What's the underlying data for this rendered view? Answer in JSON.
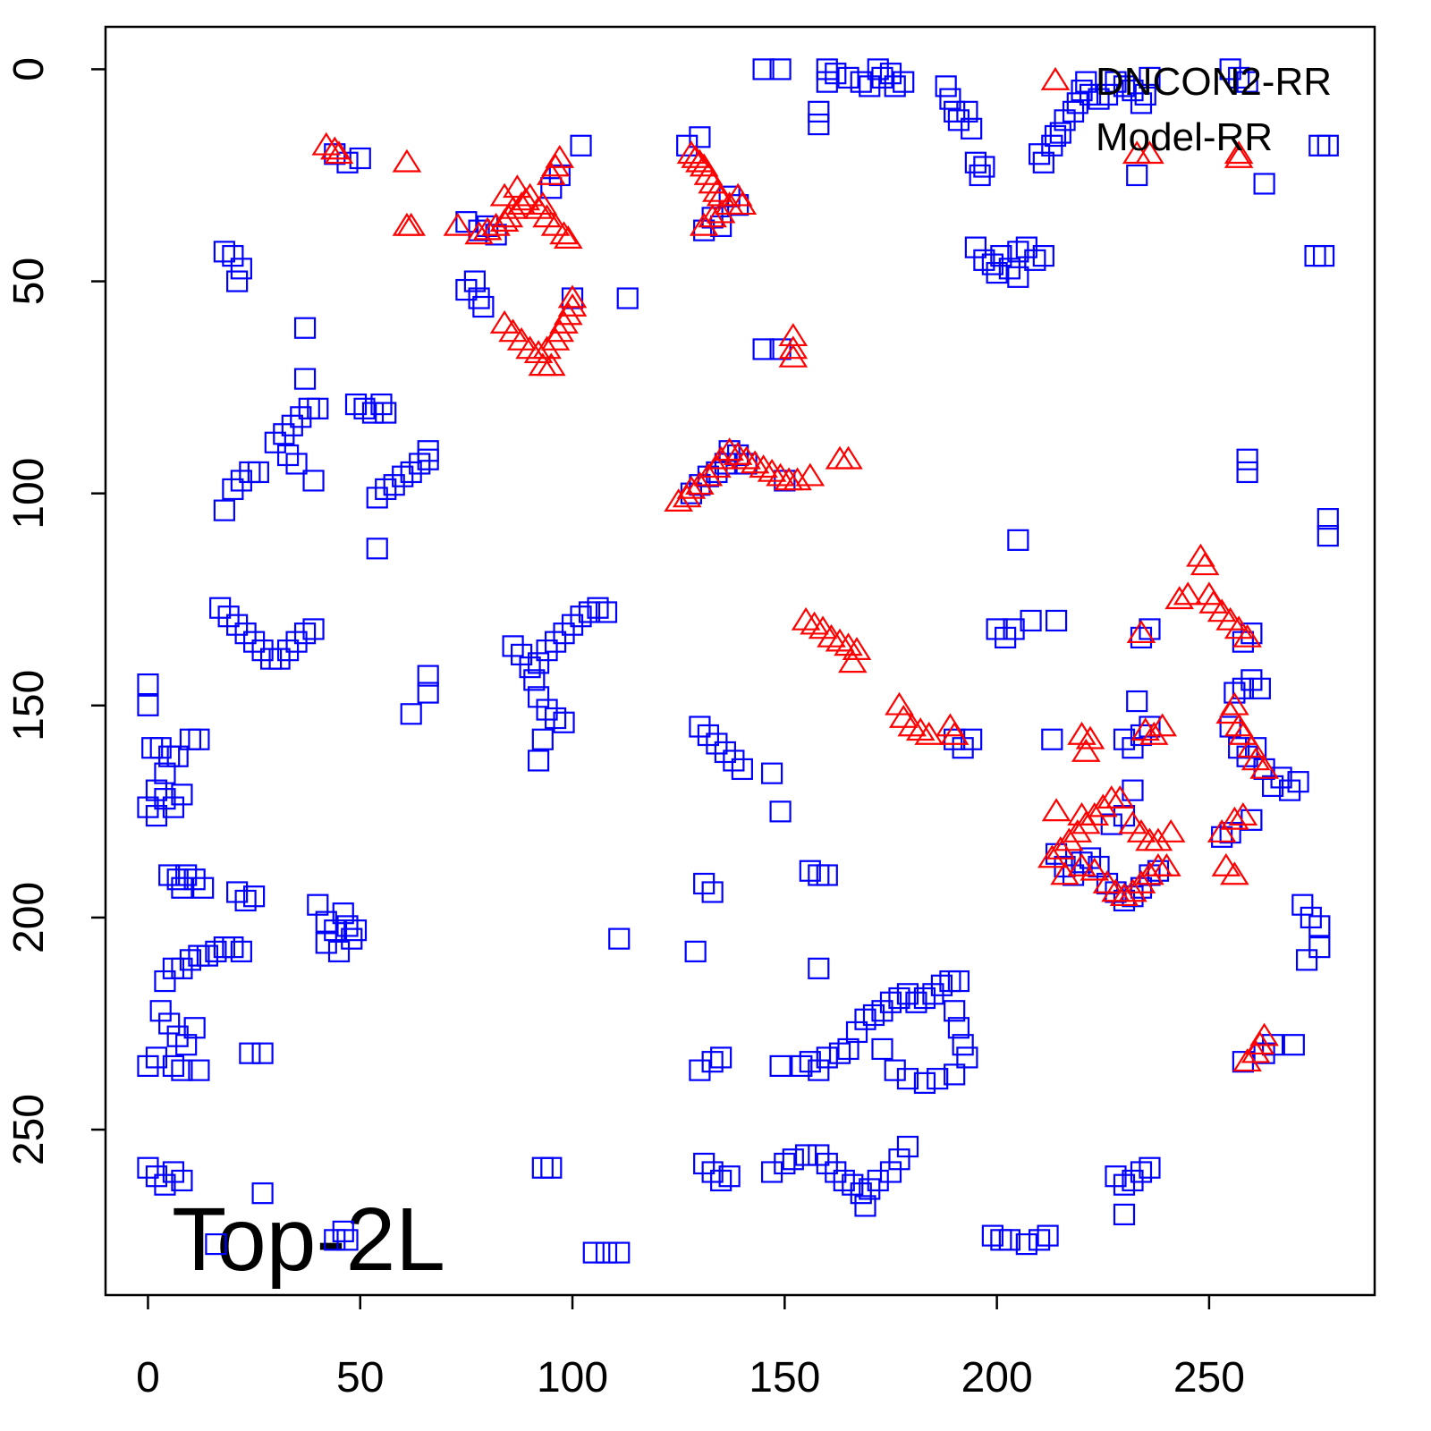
{
  "chart_data": {
    "type": "scatter",
    "annotation": "Top-2L",
    "xlim": [
      -10,
      289
    ],
    "ylim": [
      289,
      -10
    ],
    "xticks": [
      0,
      50,
      100,
      150,
      200,
      250
    ],
    "yticks": [
      0,
      50,
      100,
      150,
      200,
      250
    ],
    "legend": "top-right",
    "series": [
      {
        "name": "DNCON2-RR",
        "color": "#ff0000",
        "marker": "triangle",
        "x": [
          42,
          44,
          45,
          61,
          61,
          62,
          73,
          78,
          80,
          82,
          84,
          85,
          86,
          88,
          89,
          90,
          87,
          84,
          92,
          94,
          96,
          98,
          99,
          95,
          96,
          97,
          93,
          84,
          86,
          88,
          90,
          92,
          94,
          96,
          97,
          98,
          99,
          100,
          100,
          93,
          95,
          128,
          129,
          130,
          131,
          132,
          133,
          134,
          135,
          137,
          139,
          140,
          131,
          133,
          135,
          125,
          127,
          128,
          130,
          132,
          134,
          135,
          137,
          139,
          141,
          143,
          145,
          147,
          149,
          151,
          153,
          156,
          163,
          165,
          152,
          152,
          152,
          155,
          157,
          159,
          161,
          163,
          165,
          167,
          166,
          177,
          178,
          180,
          182,
          184,
          189,
          190,
          220,
          222,
          221,
          248,
          249,
          245,
          243,
          250,
          251,
          253,
          255,
          257,
          259,
          234,
          233,
          236,
          257,
          257,
          257,
          258,
          260,
          261,
          263,
          255,
          256,
          235,
          237,
          239,
          213,
          215,
          217,
          219,
          221,
          223,
          225,
          227,
          229,
          214,
          220,
          216,
          220,
          223,
          226,
          228,
          230,
          232,
          234,
          236,
          238,
          240,
          232,
          234,
          236,
          238,
          241,
          253,
          256,
          258,
          254,
          256,
          259,
          261,
          262,
          263
        ],
        "values": [
          18,
          19,
          20,
          22,
          37,
          37,
          37,
          39,
          38,
          37,
          36,
          35,
          33,
          32,
          31,
          30,
          28,
          30,
          33,
          35,
          37,
          39,
          40,
          25,
          23,
          21,
          32,
          60,
          62,
          64,
          66,
          67,
          66,
          64,
          62,
          60,
          58,
          56,
          54,
          70,
          70,
          20,
          21,
          22,
          23,
          25,
          27,
          29,
          30,
          32,
          30,
          32,
          37,
          35,
          34,
          102,
          101,
          99,
          98,
          96,
          94,
          92,
          90,
          91,
          92,
          93,
          94,
          95,
          96,
          97,
          97,
          96,
          92,
          92,
          63,
          66,
          68,
          130,
          131,
          132,
          134,
          135,
          136,
          137,
          140,
          150,
          153,
          155,
          156,
          157,
          155,
          157,
          157,
          158,
          161,
          115,
          117,
          124,
          125,
          124,
          126,
          128,
          130,
          132,
          134,
          133,
          20,
          20,
          20,
          21,
          155,
          157,
          160,
          163,
          165,
          152,
          150,
          156,
          157,
          155,
          186,
          184,
          182,
          180,
          178,
          176,
          174,
          172,
          172,
          175,
          176,
          190,
          188,
          189,
          192,
          194,
          195,
          194,
          192,
          190,
          188,
          188,
          178,
          180,
          182,
          182,
          180,
          180,
          177,
          176,
          188,
          190,
          234,
          232,
          230,
          228
        ]
      },
      {
        "name": "Model-RR",
        "color": "#0000ff",
        "marker": "square",
        "x": [
          145,
          149,
          160,
          160,
          162,
          165,
          168,
          170,
          172,
          173,
          175,
          176,
          178,
          158,
          158,
          188,
          189,
          190,
          191,
          193,
          194,
          195,
          197,
          196,
          210,
          211,
          213,
          215,
          216,
          218,
          219,
          220,
          221,
          222,
          224,
          226,
          228,
          230,
          232,
          234,
          235,
          236,
          233,
          263,
          276,
          278,
          195,
          197,
          199,
          201,
          203,
          205,
          207,
          209,
          211,
          200,
          205,
          275,
          277,
          18,
          20,
          22,
          21,
          44,
          47,
          50,
          102,
          97,
          95,
          75,
          78,
          80,
          82,
          75,
          77,
          78,
          79,
          113,
          100,
          37,
          37,
          127,
          130,
          131,
          133,
          135,
          137,
          139,
          145,
          149,
          30,
          32,
          34,
          36,
          38,
          40,
          33,
          35,
          39,
          18,
          20,
          22,
          24,
          26,
          49,
          51,
          53,
          55,
          56,
          54,
          56,
          58,
          60,
          62,
          64,
          66,
          66,
          54,
          128,
          130,
          132,
          134,
          136,
          137,
          139,
          141,
          150,
          259,
          259,
          278,
          278,
          205,
          17,
          19,
          21,
          23,
          25,
          27,
          29,
          31,
          33,
          35,
          37,
          39,
          86,
          88,
          90,
          92,
          94,
          96,
          98,
          100,
          102,
          104,
          106,
          108,
          91,
          92,
          94,
          96,
          98,
          93,
          92,
          0,
          0,
          1,
          3,
          5,
          7,
          2,
          4,
          6,
          8,
          0,
          2,
          10,
          12,
          4,
          62,
          66,
          66,
          5,
          7,
          9,
          11,
          13,
          8,
          21,
          23,
          25,
          40,
          42,
          44,
          46,
          48,
          45,
          42,
          47,
          49,
          6,
          8,
          10,
          12,
          14,
          16,
          18,
          20,
          22,
          4,
          3,
          5,
          7,
          9,
          11,
          0,
          2,
          6,
          8,
          12,
          24,
          27,
          27,
          16,
          0,
          2,
          4,
          6,
          8,
          44,
          46,
          47,
          105,
          108,
          111,
          93,
          95,
          111,
          130,
          132,
          134,
          136,
          138,
          140,
          147,
          149,
          131,
          133,
          129,
          130,
          133,
          135,
          149,
          156,
          158,
          160,
          158,
          154,
          156,
          158,
          160,
          163,
          165,
          167,
          169,
          171,
          173,
          175,
          177,
          179,
          181,
          183,
          185,
          187,
          189,
          191,
          190,
          191,
          192,
          193,
          190,
          186,
          183,
          179,
          176,
          173,
          147,
          150,
          152,
          155,
          158,
          160,
          162,
          164,
          166,
          168,
          170,
          172,
          175,
          177,
          179,
          169,
          131,
          133,
          135,
          137,
          199,
          201,
          203,
          207,
          210,
          212,
          228,
          230,
          232,
          234,
          230,
          236,
          234,
          236,
          214,
          208,
          200,
          202,
          204,
          213,
          230,
          232,
          234,
          236,
          233,
          190,
          194,
          192,
          258,
          260,
          256,
          258,
          260,
          262,
          255,
          257,
          259,
          261,
          263,
          265,
          267,
          269,
          271,
          255,
          253,
          260,
          214,
          216,
          218,
          220,
          222,
          224,
          226,
          228,
          230,
          232,
          234,
          236,
          238,
          227,
          230,
          232,
          263,
          265,
          270,
          258,
          272,
          274,
          276,
          276,
          273,
          255,
          257,
          259
        ],
        "values": [
          0,
          0,
          0,
          3,
          1,
          2,
          3,
          4,
          0,
          2,
          1,
          4,
          3,
          10,
          13,
          4,
          7,
          10,
          12,
          10,
          14,
          22,
          23,
          25,
          20,
          22,
          18,
          15,
          12,
          10,
          8,
          5,
          3,
          6,
          7,
          6,
          3,
          4,
          5,
          8,
          6,
          2,
          25,
          27,
          18,
          18,
          42,
          45,
          46,
          44,
          47,
          43,
          42,
          45,
          44,
          48,
          49,
          44,
          44,
          43,
          44,
          47,
          50,
          20,
          22,
          21,
          18,
          25,
          28,
          36,
          38,
          37,
          39,
          52,
          50,
          54,
          56,
          54,
          54,
          61,
          73,
          18,
          16,
          38,
          35,
          37,
          30,
          32,
          66,
          66,
          88,
          86,
          84,
          82,
          80,
          80,
          91,
          93,
          97,
          104,
          99,
          97,
          95,
          95,
          79,
          80,
          81,
          79,
          81,
          101,
          99,
          98,
          96,
          95,
          93,
          92,
          90,
          113,
          100,
          98,
          96,
          95,
          93,
          90,
          91,
          93,
          97,
          92,
          95,
          106,
          110,
          111,
          127,
          129,
          131,
          133,
          135,
          137,
          139,
          139,
          137,
          135,
          133,
          132,
          136,
          138,
          141,
          140,
          137,
          135,
          133,
          131,
          129,
          128,
          127,
          128,
          144,
          148,
          151,
          153,
          154,
          158,
          163,
          145,
          150,
          160,
          160,
          162,
          162,
          170,
          172,
          174,
          171,
          174,
          176,
          158,
          158,
          166,
          152,
          143,
          147,
          190,
          191,
          190,
          191,
          193,
          193,
          194,
          196,
          195,
          197,
          201,
          203,
          199,
          205,
          208,
          206,
          202,
          203,
          212,
          212,
          210,
          209,
          209,
          208,
          207,
          207,
          208,
          215,
          222,
          225,
          228,
          230,
          226,
          235,
          233,
          235,
          236,
          236,
          232,
          232,
          265,
          277,
          259,
          261,
          263,
          260,
          262,
          276,
          274,
          276,
          279,
          279,
          279,
          259,
          259,
          205,
          155,
          157,
          159,
          161,
          163,
          165,
          166,
          175,
          192,
          194,
          208,
          236,
          234,
          233,
          235,
          189,
          190,
          190,
          212,
          235,
          234,
          236,
          233,
          232,
          231,
          227,
          224,
          223,
          222,
          220,
          219,
          218,
          220,
          219,
          218,
          216,
          215,
          215,
          222,
          226,
          230,
          233,
          237,
          238,
          239,
          238,
          236,
          231,
          260,
          258,
          257,
          256,
          256,
          258,
          260,
          262,
          263,
          265,
          264,
          262,
          260,
          257,
          254,
          268,
          258,
          260,
          262,
          261,
          275,
          276,
          276,
          277,
          276,
          275,
          261,
          263,
          262,
          260,
          270,
          259,
          134,
          132,
          130,
          130,
          132,
          134,
          132,
          158,
          158,
          160,
          157,
          155,
          149,
          158,
          158,
          160,
          135,
          133,
          147,
          146,
          144,
          146,
          155,
          160,
          162,
          160,
          165,
          169,
          167,
          170,
          168,
          180,
          181,
          177,
          185,
          188,
          190,
          187,
          186,
          188,
          192,
          194,
          196,
          195,
          193,
          190,
          189,
          178,
          176,
          170,
          232,
          230,
          230,
          234,
          197,
          200,
          202,
          207,
          210,
          0,
          2,
          3
        ]
      }
    ]
  }
}
